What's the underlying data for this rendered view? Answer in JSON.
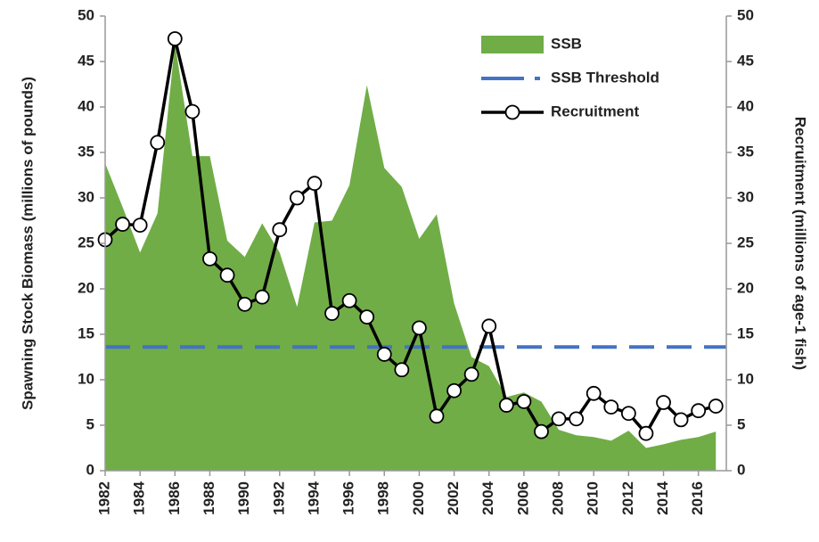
{
  "chart_data": {
    "type": "area-line",
    "y_label": "Spawning Stock Biomass (millions of pounds)",
    "y2_label": "Recruitment (millions of age-1 fish)",
    "x": [
      1982,
      1983,
      1984,
      1985,
      1986,
      1987,
      1988,
      1989,
      1990,
      1991,
      1992,
      1993,
      1994,
      1995,
      1996,
      1997,
      1998,
      1999,
      2000,
      2001,
      2002,
      2003,
      2004,
      2005,
      2006,
      2007,
      2008,
      2009,
      2010,
      2011,
      2012,
      2013,
      2014,
      2015,
      2016,
      2017
    ],
    "xlim": [
      1982,
      2017.6
    ],
    "xticks": [
      1982,
      1984,
      1986,
      1988,
      1990,
      1992,
      1994,
      1996,
      1998,
      2000,
      2002,
      2004,
      2006,
      2008,
      2010,
      2012,
      2014,
      2016
    ],
    "ylim": [
      0,
      50
    ],
    "yticks": [
      0,
      5,
      10,
      15,
      20,
      25,
      30,
      35,
      40,
      45,
      50
    ],
    "y2lim": [
      0,
      50
    ],
    "y2ticks": [
      0,
      5,
      10,
      15,
      20,
      25,
      30,
      35,
      40,
      45,
      50
    ],
    "legend": "upper right",
    "series": [
      {
        "name": "SSB",
        "kind": "area",
        "color": "#70ad47",
        "values": [
          33.8,
          29,
          24,
          28.3,
          47,
          34.6,
          34.6,
          25.3,
          23.5,
          27.2,
          24,
          18,
          27.3,
          27.5,
          31.4,
          42.4,
          33.3,
          31.2,
          25.5,
          28.2,
          18.4,
          12.5,
          11.5,
          8.1,
          8.6,
          7.6,
          4.5,
          3.9,
          3.7,
          3.3,
          4.4,
          2.5,
          2.9,
          3.4,
          3.7,
          4.3
        ]
      },
      {
        "name": "SSB Threshold",
        "kind": "threshold",
        "color": "#4472c4",
        "value": 13.6
      },
      {
        "name": "Recruitment",
        "kind": "line",
        "color": "#000000",
        "axis": "y2",
        "values": [
          25.4,
          27.1,
          27,
          36.1,
          47.5,
          39.5,
          23.3,
          21.5,
          18.3,
          19.1,
          26.5,
          30,
          31.6,
          17.3,
          18.7,
          16.9,
          12.8,
          11.1,
          15.7,
          6,
          8.8,
          10.6,
          15.9,
          7.2,
          7.6,
          4.3,
          5.7,
          5.7,
          8.5,
          7,
          6.3,
          4.1,
          7.5,
          5.6,
          6.6,
          7.1
        ]
      }
    ]
  }
}
